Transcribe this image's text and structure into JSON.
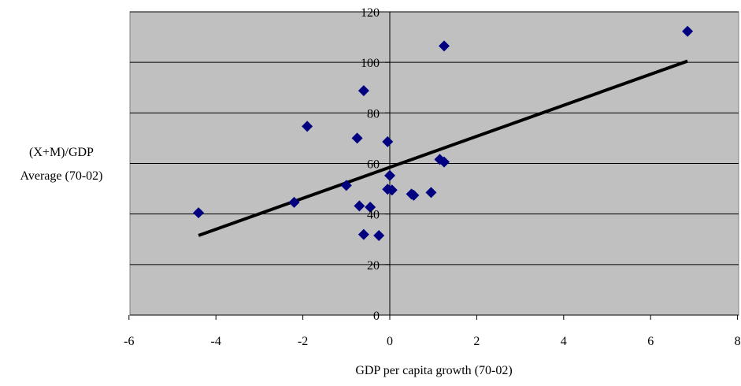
{
  "chart_data": {
    "type": "scatter",
    "title": "",
    "xlabel": "GDP per capita growth (70-02)",
    "ylabel_lines": [
      "(X+M)/GDP",
      "Average (70-02)"
    ],
    "xlim": [
      -6,
      8
    ],
    "ylim": [
      0,
      120
    ],
    "x_ticks": [
      -6,
      -4,
      -2,
      0,
      2,
      4,
      6,
      8
    ],
    "y_ticks": [
      0,
      20,
      40,
      60,
      80,
      100,
      120
    ],
    "x_tick_labels": [
      "-6",
      "-4",
      "-2",
      "0",
      "2",
      "4",
      "6",
      "8"
    ],
    "y_tick_labels": [
      "0",
      "20",
      "40",
      "60",
      "80",
      "100",
      "120"
    ],
    "grid": {
      "horizontal": true,
      "vertical": false
    },
    "plot_area_color": "#c0c0c0",
    "marker_color": "#000080",
    "marker_shape": "diamond",
    "trendline_color": "#000000",
    "series": [
      {
        "points": [
          [
            -4.4,
            40.5
          ],
          [
            -2.2,
            44.6
          ],
          [
            -1.9,
            74.7
          ],
          [
            -1.0,
            51.3
          ],
          [
            -0.75,
            70.0
          ],
          [
            -0.7,
            43.2
          ],
          [
            -0.6,
            88.8
          ],
          [
            -0.6,
            31.9
          ],
          [
            -0.45,
            42.7
          ],
          [
            -0.25,
            31.5
          ],
          [
            -0.05,
            68.6
          ],
          [
            -0.05,
            49.8
          ],
          [
            0.0,
            55.2
          ],
          [
            0.05,
            49.5
          ],
          [
            0.5,
            47.9
          ],
          [
            0.55,
            47.4
          ],
          [
            0.95,
            48.5
          ],
          [
            1.15,
            61.6
          ],
          [
            1.25,
            60.6
          ],
          [
            1.25,
            106.5
          ],
          [
            6.85,
            112.3
          ]
        ]
      }
    ],
    "trendline": {
      "x": [
        -4.4,
        6.85
      ],
      "y": [
        31.5,
        100.5
      ]
    }
  }
}
